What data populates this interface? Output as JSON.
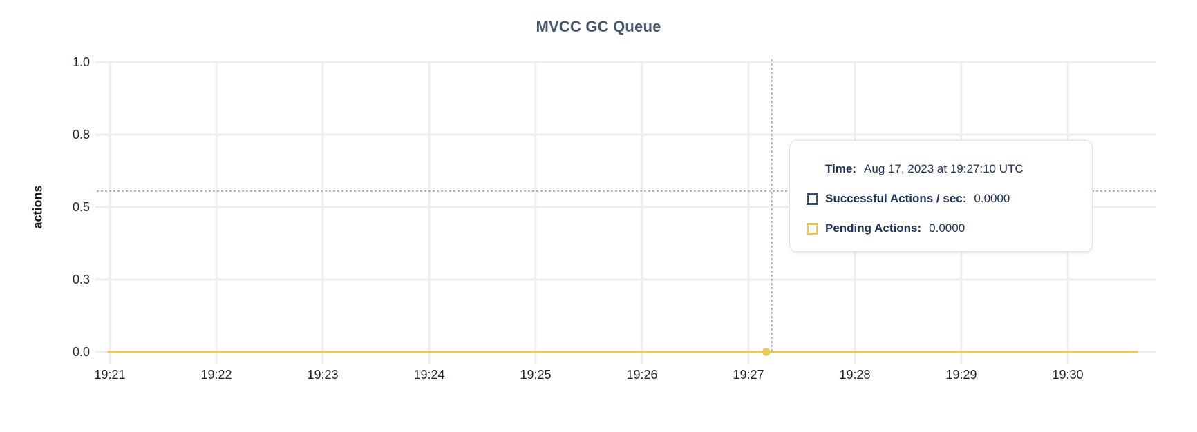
{
  "chart": {
    "title": "MVCC GC Queue",
    "y_axis_label": "actions"
  },
  "chart_data": {
    "type": "line",
    "title": "MVCC GC Queue",
    "ylabel": "actions",
    "xlabel": "",
    "grid": true,
    "legend_position": "tooltip",
    "ylim": [
      0,
      1
    ],
    "y_tick_labels": [
      "0.0",
      "0.3",
      "0.5",
      "0.8",
      "1.0"
    ],
    "x_ticks": [
      "19:21",
      "19:22",
      "19:23",
      "19:24",
      "19:25",
      "19:26",
      "19:27",
      "19:28",
      "19:29",
      "19:30"
    ],
    "series": [
      {
        "name": "Successful Actions / sec",
        "color": "#394d6f",
        "values": [
          0,
          0
        ],
        "flat_value": 0
      },
      {
        "name": "Pending Actions",
        "color": "#eec84e",
        "values": [
          0,
          0
        ],
        "flat_value": 0
      }
    ]
  },
  "crosshair": {
    "tick": "19:27",
    "seconds_past_tick": 10,
    "hover_y_value": 0.555,
    "color": "#98a7b8"
  },
  "tooltip": {
    "time_label": "Time:",
    "time_value": "Aug 17, 2023 at 19:27:10 UTC",
    "series": [
      {
        "label": "Successful Actions / sec:",
        "value": "0.0000",
        "color": "#394d6f"
      },
      {
        "label": "Pending Actions:",
        "value": "0.0000",
        "color": "#eec84e"
      }
    ]
  },
  "colors": {
    "gridline": "#eeeeee",
    "axis_text": "#1f2430",
    "title": "#475872"
  }
}
